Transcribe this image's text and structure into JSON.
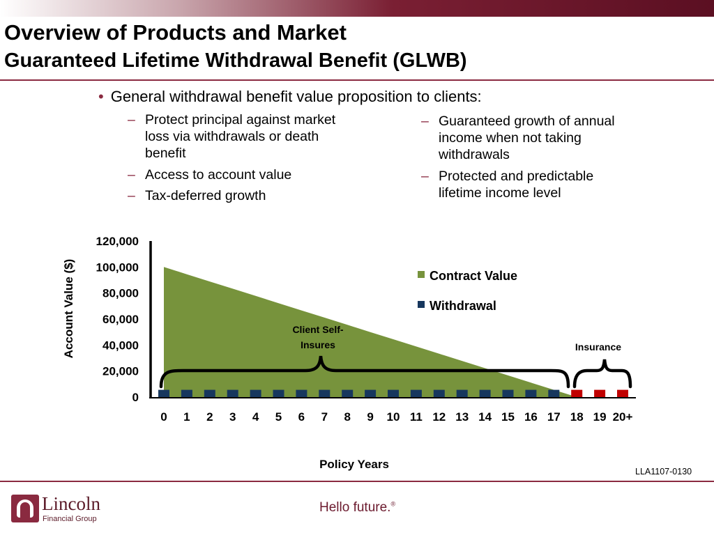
{
  "header": {
    "title_line1": "Overview of Products and Market",
    "title_line2": "Guaranteed Lifetime Withdrawal Benefit (GLWB)"
  },
  "bullets": {
    "main": "General withdrawal benefit value proposition to clients:",
    "left": [
      "Protect principal against market loss via withdrawals or death benefit",
      "Access to account value",
      "Tax-deferred growth"
    ],
    "right": [
      "Guaranteed growth of annual income when not taking withdrawals",
      "Protected and predictable lifetime income level"
    ]
  },
  "chart_data": {
    "type": "area",
    "xlabel": "Policy Years",
    "ylabel": "Account Value ($)",
    "categories": [
      "0",
      "1",
      "2",
      "3",
      "4",
      "5",
      "6",
      "7",
      "8",
      "9",
      "10",
      "11",
      "12",
      "13",
      "14",
      "15",
      "16",
      "17",
      "18",
      "19",
      "20+"
    ],
    "yticks": [
      "120,000",
      "100,000",
      "80,000",
      "60,000",
      "40,000",
      "20,000",
      "0"
    ],
    "ylim": [
      0,
      120000
    ],
    "series": [
      {
        "name": "Contract Value",
        "color": "#77933c",
        "values": [
          100000,
          94444,
          88889,
          83333,
          77778,
          72222,
          66667,
          61111,
          55556,
          50000,
          44444,
          38889,
          33333,
          27778,
          22222,
          16667,
          11111,
          5556,
          0,
          0,
          0
        ]
      },
      {
        "name": "Withdrawal",
        "color": "#17375e",
        "values": [
          5556,
          5556,
          5556,
          5556,
          5556,
          5556,
          5556,
          5556,
          5556,
          5556,
          5556,
          5556,
          5556,
          5556,
          5556,
          5556,
          5556,
          5556,
          5556,
          5556,
          5556
        ]
      }
    ],
    "insurance_color": "#c00000",
    "legend_position": "right",
    "annotations": {
      "self_insure": "Client Self-Insures",
      "insurance": "Insurance"
    }
  },
  "footer": {
    "code": "LLA1107-0130",
    "logo_name": "Lincoln",
    "logo_sub": "Financial Group",
    "tagline": "Hello future."
  }
}
